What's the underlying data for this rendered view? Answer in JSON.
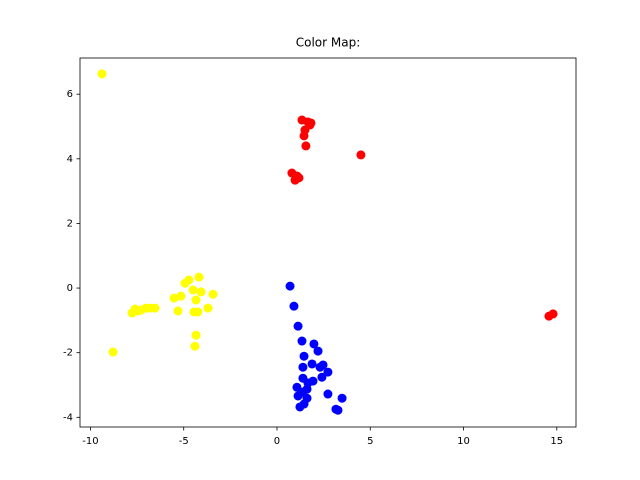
{
  "chart_data": {
    "type": "scatter",
    "title": "Color Map:",
    "xlim": [
      -10.56,
      16.03
    ],
    "ylim": [
      -4.3,
      7.12
    ],
    "xticks": [
      -10,
      -5,
      0,
      5,
      10,
      15
    ],
    "yticks": [
      -4,
      -2,
      0,
      2,
      4,
      6
    ],
    "series": [
      {
        "color": "#ffff00",
        "x": [
          -9.38,
          -8.79,
          -7.77,
          -7.61,
          -7.45,
          -7.29,
          -7.02,
          -6.81,
          -6.54,
          -5.52,
          -5.31,
          -5.15,
          -4.93,
          -4.72,
          -4.5,
          -4.34,
          -4.24,
          -4.34,
          -4.4,
          -4.18,
          -4.07,
          -3.7,
          -3.43,
          -4.45
        ],
        "values": [
          6.63,
          -1.98,
          -0.77,
          -0.65,
          -0.71,
          -0.68,
          -0.62,
          -0.62,
          -0.62,
          -0.31,
          -0.71,
          -0.25,
          0.15,
          0.25,
          -0.06,
          -0.37,
          -0.74,
          -1.46,
          -1.8,
          0.34,
          -0.12,
          -0.62,
          -0.19,
          -0.74
        ]
      },
      {
        "color": "#ff0000",
        "x": [
          1.34,
          1.82,
          1.77,
          1.66,
          1.5,
          1.45,
          1.55,
          4.5,
          0.8,
          1.07,
          0.97,
          1.18,
          14.58,
          14.8
        ],
        "values": [
          5.2,
          5.11,
          5.05,
          5.14,
          4.89,
          4.71,
          4.4,
          4.12,
          3.56,
          3.47,
          3.34,
          3.41,
          -0.87,
          -0.8
        ]
      },
      {
        "color": "#0000ff",
        "x": [
          0.7,
          0.91,
          1.13,
          1.34,
          1.45,
          1.98,
          2.2,
          1.39,
          1.88,
          2.31,
          2.47,
          2.73,
          1.39,
          1.93,
          1.66,
          2.41,
          1.07,
          1.61,
          1.39,
          1.13,
          1.61,
          2.73,
          3.49,
          1.23,
          1.45,
          3.16,
          3.27
        ],
        "values": [
          0.06,
          -0.56,
          -1.18,
          -1.64,
          -2.11,
          -1.73,
          -1.95,
          -2.45,
          -2.35,
          -2.45,
          -2.38,
          -2.6,
          -2.79,
          -2.88,
          -2.94,
          -2.76,
          -3.07,
          -3.13,
          -3.22,
          -3.34,
          -3.41,
          -3.28,
          -3.41,
          -3.68,
          -3.59,
          -3.75,
          -3.78
        ]
      }
    ]
  }
}
